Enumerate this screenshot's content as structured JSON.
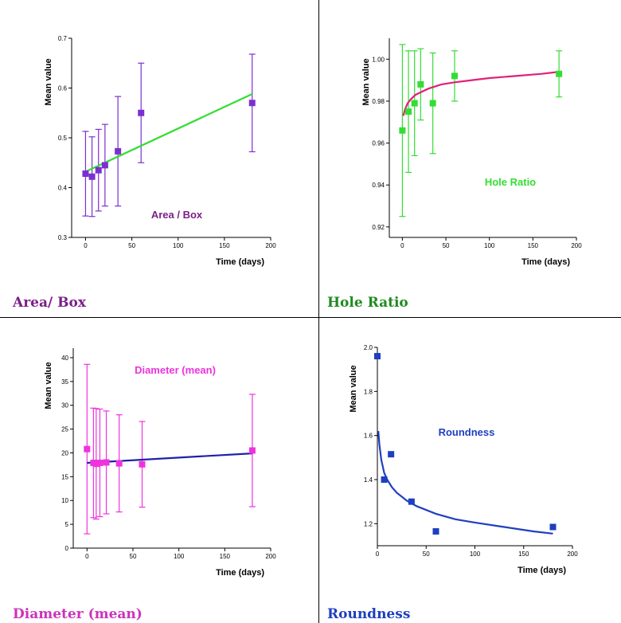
{
  "chart_data": [
    {
      "id": "area",
      "type": "scatter",
      "caption": "Area/ Box",
      "annotation": "Area / Box",
      "xlabel": "Time (days)",
      "ylabel": "Mean value",
      "xlim": [
        -15,
        200
      ],
      "ylim": [
        0.3,
        0.7
      ],
      "xticks": [
        0,
        50,
        100,
        150,
        200
      ],
      "yticks": [
        0.3,
        0.4,
        0.5,
        0.6,
        0.7
      ],
      "point_color": "#7b2fd0",
      "fit_color": "#33dd33",
      "caption_color": "#7a1f86",
      "annotation_color": "#7a1f86",
      "x": [
        0,
        7,
        14,
        21,
        35,
        60,
        180
      ],
      "y": [
        0.428,
        0.422,
        0.435,
        0.445,
        0.473,
        0.55,
        0.57
      ],
      "err": [
        0.085,
        0.08,
        0.082,
        0.082,
        0.11,
        0.1,
        0.098
      ],
      "fit": {
        "kind": "linear",
        "x": [
          0,
          180
        ],
        "y": [
          0.432,
          0.588
        ]
      }
    },
    {
      "id": "hole",
      "type": "scatter",
      "caption": "Hole Ratio",
      "annotation": "Hole Ratio",
      "xlabel": "Time (days)",
      "ylabel": "Mean value",
      "xlim": [
        -15,
        200
      ],
      "ylim": [
        0.915,
        1.01
      ],
      "xticks": [
        0,
        50,
        100,
        150,
        200
      ],
      "yticks": [
        0.92,
        0.94,
        0.96,
        0.98,
        1.0
      ],
      "ytick_labels": [
        "0.92",
        "0.94",
        "0.96",
        "0.98",
        "1.00"
      ],
      "point_color": "#33dd33",
      "fit_color": "#e0207a",
      "caption_color": "#1f8a1f",
      "annotation_color": "#33dd33",
      "x": [
        0,
        7,
        14,
        21,
        35,
        60,
        180
      ],
      "y": [
        0.966,
        0.975,
        0.979,
        0.988,
        0.979,
        0.992,
        0.993
      ],
      "err": [
        0.041,
        0.029,
        0.025,
        0.017,
        0.024,
        0.012,
        0.011
      ],
      "fit": {
        "kind": "curve",
        "x": [
          1,
          3,
          6,
          10,
          15,
          20,
          30,
          45,
          60,
          80,
          100,
          130,
          160,
          180
        ],
        "y": [
          0.973,
          0.976,
          0.979,
          0.981,
          0.983,
          0.984,
          0.986,
          0.988,
          0.989,
          0.99,
          0.991,
          0.992,
          0.993,
          0.994
        ]
      }
    },
    {
      "id": "diam",
      "type": "scatter",
      "caption": "Diameter (mean)",
      "annotation": "Diameter (mean)",
      "xlabel": "Time (days)",
      "ylabel": "Mean value",
      "xlim": [
        -15,
        200
      ],
      "ylim": [
        0,
        42
      ],
      "xticks": [
        0,
        50,
        100,
        150,
        200
      ],
      "yticks": [
        0,
        5,
        10,
        15,
        20,
        25,
        30,
        35,
        40
      ],
      "point_color": "#ee33dd",
      "fit_color": "#2020aa",
      "caption_color": "#cc33bb",
      "annotation_color": "#ee33dd",
      "x": [
        0,
        7,
        10,
        14,
        21,
        35,
        60,
        180
      ],
      "y": [
        20.8,
        17.9,
        17.7,
        17.9,
        18.0,
        17.8,
        17.6,
        20.5
      ],
      "err": [
        17.8,
        11.5,
        11.6,
        11.3,
        10.8,
        10.2,
        9.0,
        11.8
      ],
      "fit": {
        "kind": "linear",
        "x": [
          0,
          180
        ],
        "y": [
          17.9,
          19.9
        ]
      }
    },
    {
      "id": "round",
      "type": "scatter",
      "caption": "Roundness",
      "annotation": "Roundness",
      "xlabel": "Time (days)",
      "ylabel": "Mean value",
      "xlim": [
        0,
        200
      ],
      "ylim": [
        1.1,
        2.0
      ],
      "xticks": [
        0,
        50,
        100,
        150,
        200
      ],
      "yticks": [
        1.2,
        1.4,
        1.6,
        1.8,
        2.0
      ],
      "ytick_labels": [
        "1.2",
        "1.4",
        "1.6",
        "1.8",
        "2.0"
      ],
      "point_color": "#1f3fbf",
      "fit_color": "#1f3fbf",
      "caption_color": "#1f3fbf",
      "annotation_color": "#1f3fbf",
      "x": [
        0,
        7,
        14,
        35,
        60,
        180
      ],
      "y": [
        1.96,
        1.4,
        1.515,
        1.3,
        1.165,
        1.185
      ],
      "err": [
        0,
        0,
        0,
        0,
        0,
        0
      ],
      "fit": {
        "kind": "curve",
        "x": [
          1,
          2,
          4,
          7,
          10,
          15,
          20,
          30,
          40,
          60,
          80,
          100,
          130,
          160,
          180
        ],
        "y": [
          1.62,
          1.56,
          1.49,
          1.43,
          1.4,
          1.365,
          1.34,
          1.305,
          1.28,
          1.245,
          1.22,
          1.205,
          1.185,
          1.165,
          1.155
        ]
      }
    }
  ]
}
